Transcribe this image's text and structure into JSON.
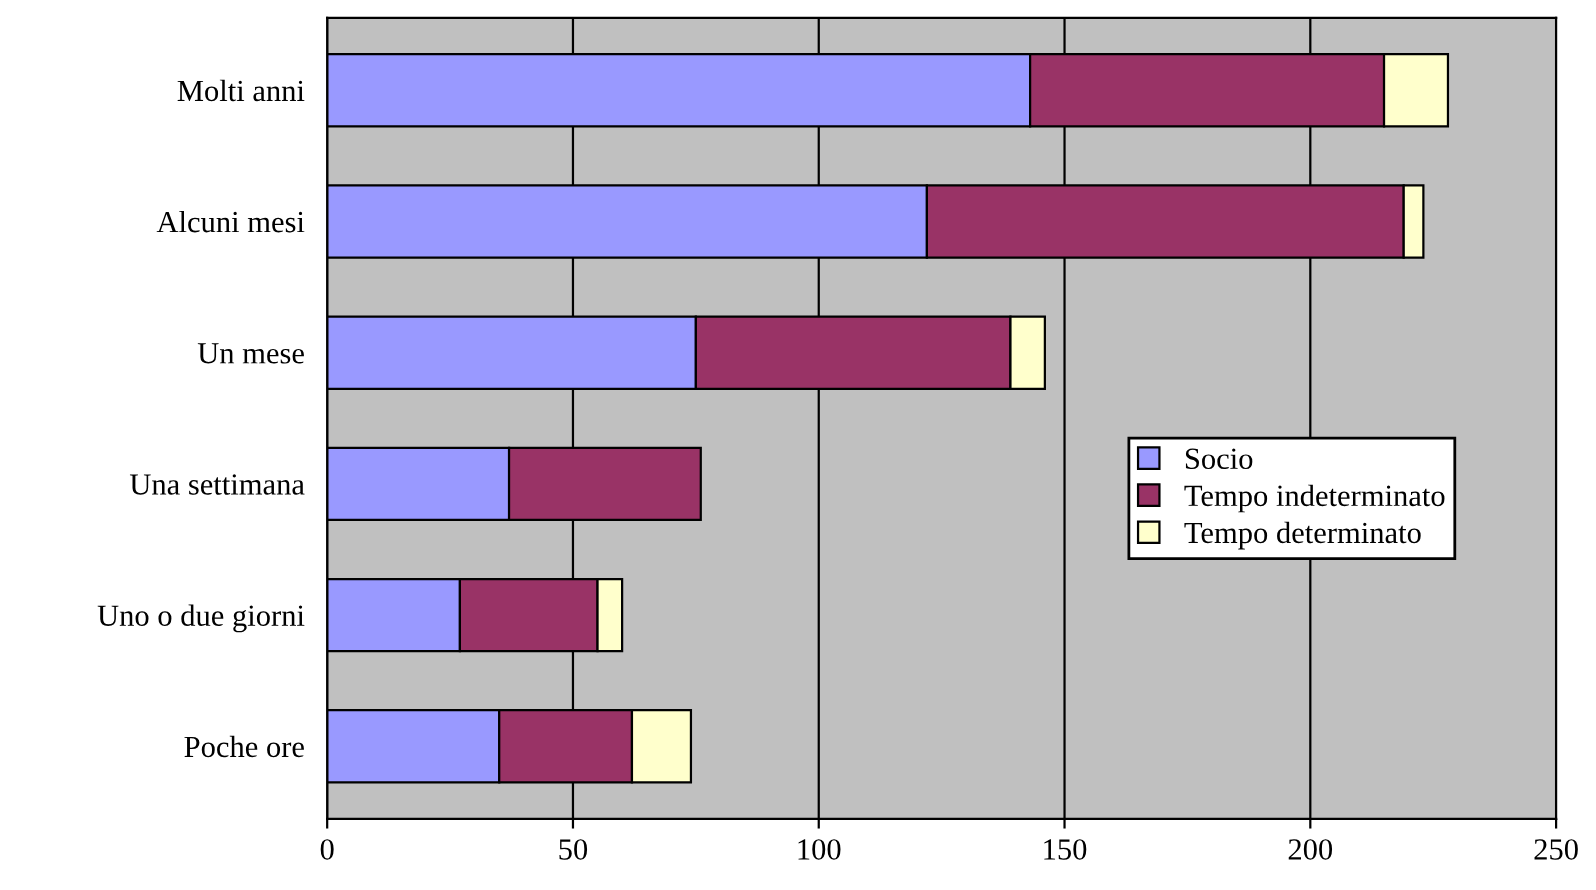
{
  "chart_data": {
    "type": "bar",
    "orientation": "horizontal",
    "stacked": true,
    "categories": [
      "Molti anni",
      "Alcuni mesi",
      "Un mese",
      "Una settimana",
      "Uno o due giorni",
      "Poche ore"
    ],
    "series": [
      {
        "name": "Socio",
        "color": "#9999ff",
        "values": [
          143,
          122,
          75,
          37,
          27,
          35
        ]
      },
      {
        "name": "Tempo indeterminato",
        "color": "#993366",
        "values": [
          72,
          97,
          64,
          39,
          28,
          27
        ]
      },
      {
        "name": "Tempo determinato",
        "color": "#ffffcc",
        "values": [
          13,
          4,
          7,
          null,
          5,
          12
        ]
      }
    ],
    "xlim": [
      0,
      250
    ],
    "xticks": [
      0,
      50,
      100,
      150,
      200,
      250
    ],
    "grid": "x",
    "legend": "center right"
  }
}
